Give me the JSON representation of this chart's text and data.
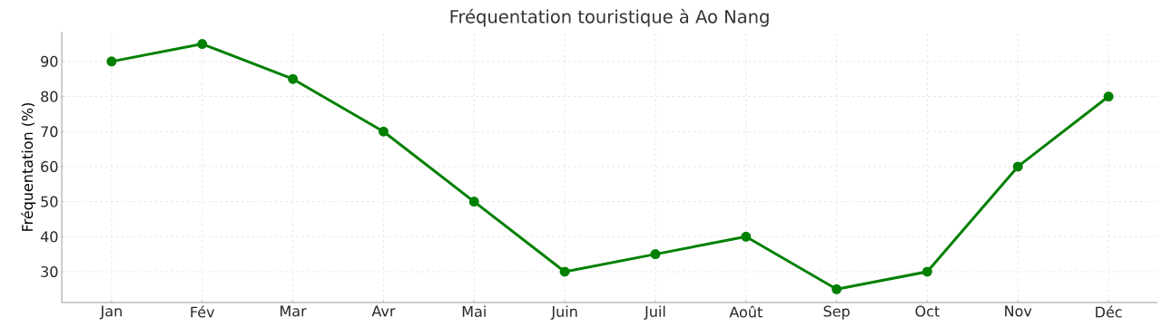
{
  "chart_data": {
    "type": "line",
    "title": "Fréquentation touristique à Ao Nang",
    "ylabel": "Fréquentation (%)",
    "categories": [
      "Jan",
      "Fév",
      "Mar",
      "Avr",
      "Mai",
      "Juin",
      "Juil",
      "Août",
      "Sep",
      "Oct",
      "Nov",
      "Déc"
    ],
    "values": [
      90,
      95,
      85,
      70,
      50,
      30,
      35,
      40,
      25,
      30,
      60,
      80
    ],
    "color": "#008000",
    "marker": "circle",
    "line_style": "solid",
    "grid": true,
    "ylim": [
      21.2,
      98.5
    ],
    "yticks": [
      30,
      40,
      50,
      60,
      70,
      80,
      90
    ]
  }
}
